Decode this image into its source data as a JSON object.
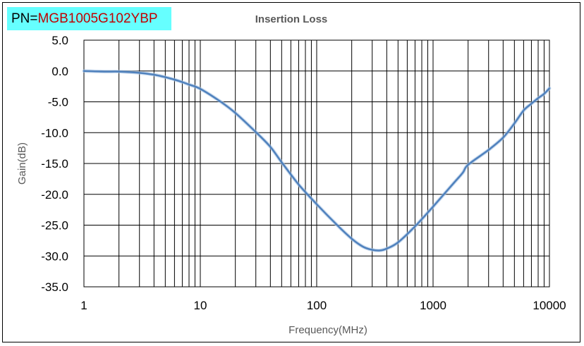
{
  "part_number": {
    "prefix": "PN=",
    "value": "MGB1005G102YBP",
    "background_color": "#66FFFF",
    "value_color": "#C00000"
  },
  "chart_data": {
    "type": "line",
    "title": "Insertion Loss",
    "xlabel": "Frequency(MHz)",
    "ylabel": "Gain(dB)",
    "x_scale": "log",
    "xlim": [
      1,
      10000
    ],
    "ylim": [
      -35,
      5
    ],
    "x_ticks": [
      "1",
      "10",
      "100",
      "1000",
      "10000"
    ],
    "y_ticks": [
      "5.0",
      "0.0",
      "-5.0",
      "-10.0",
      "-15.0",
      "-20.0",
      "-25.0",
      "-30.0",
      "-35.0"
    ],
    "grid": true,
    "line_color": "#4F81BD",
    "series": [
      {
        "x": [
          1,
          1.5,
          2,
          3,
          4,
          5,
          6,
          7,
          8,
          10,
          15,
          20,
          30,
          40,
          50,
          70,
          100,
          150,
          200,
          250,
          300,
          350,
          400,
          500,
          700,
          1000,
          1500,
          1800,
          2000,
          3000,
          4000,
          5000,
          6000,
          7000,
          8000,
          9000,
          10000
        ],
        "y": [
          0.0,
          -0.1,
          -0.1,
          -0.3,
          -0.6,
          -1.0,
          -1.4,
          -1.8,
          -2.2,
          -2.9,
          -5.0,
          -6.8,
          -9.9,
          -12.3,
          -14.8,
          -18.4,
          -21.6,
          -25.0,
          -27.2,
          -28.5,
          -29.0,
          -29.1,
          -28.8,
          -27.8,
          -25.2,
          -22.0,
          -18.2,
          -16.5,
          -15.2,
          -12.8,
          -10.8,
          -8.5,
          -6.4,
          -5.3,
          -4.4,
          -3.7,
          -2.8
        ]
      }
    ]
  }
}
